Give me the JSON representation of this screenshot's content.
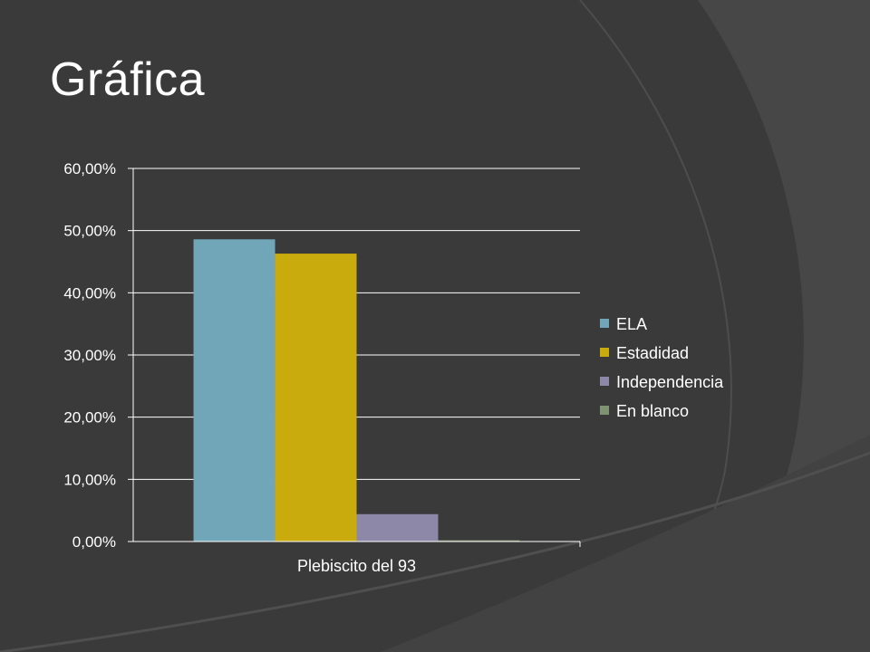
{
  "slide": {
    "title": "Gráfica"
  },
  "colors": {
    "background": "#3a3a3a",
    "decoration": "#474747",
    "text": "#ffffff",
    "gridline": "#ffffff"
  },
  "chart_data": {
    "type": "bar",
    "title": "",
    "xlabel": "",
    "ylabel": "",
    "categories": [
      "Plebiscito del 93"
    ],
    "ylim": [
      0,
      60
    ],
    "yticks": [
      0,
      10,
      20,
      30,
      40,
      50,
      60
    ],
    "ytick_labels": [
      "0,00%",
      "10,00%",
      "20,00%",
      "30,00%",
      "40,00%",
      "50,00%",
      "60,00%"
    ],
    "grid": true,
    "legend_position": "right",
    "series": [
      {
        "name": "ELA",
        "values": [
          48.6
        ],
        "color": "#71a5b8"
      },
      {
        "name": "Estadidad",
        "values": [
          46.3
        ],
        "color": "#c9ab0e"
      },
      {
        "name": "Independencia",
        "values": [
          4.4
        ],
        "color": "#8e88a8"
      },
      {
        "name": "En blanco",
        "values": [
          0.2
        ],
        "color": "#7f9272"
      }
    ]
  }
}
